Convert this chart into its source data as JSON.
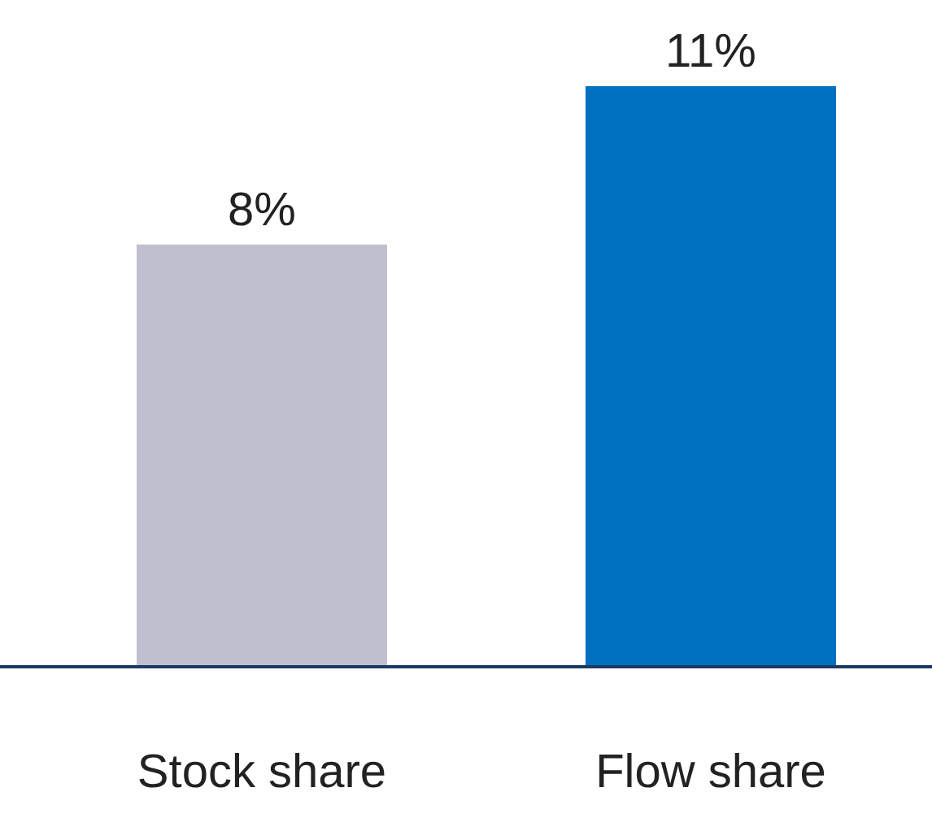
{
  "chart_data": {
    "type": "bar",
    "categories": [
      "Stock share",
      "Flow share"
    ],
    "values": [
      8,
      11
    ],
    "colors": [
      "#c0bfd0",
      "#0070c0"
    ],
    "value_labels": [
      "8%",
      "11%"
    ],
    "ylim": [
      0,
      11
    ]
  }
}
